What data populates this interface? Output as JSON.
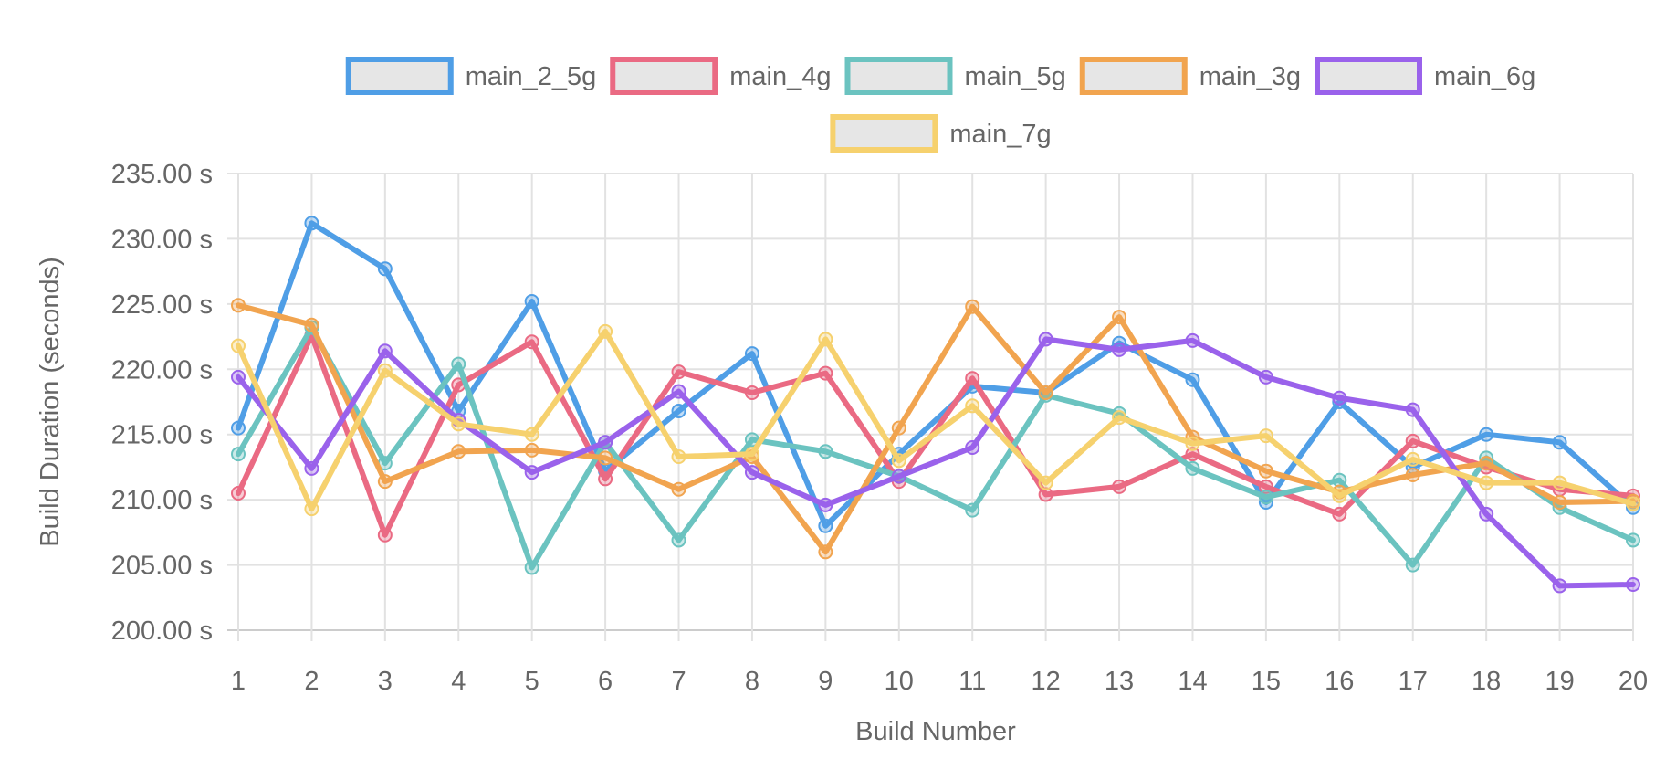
{
  "chart_data": {
    "type": "line",
    "title": "",
    "xlabel": "Build Number",
    "ylabel": "Build Duration (seconds)",
    "x": [
      1,
      2,
      3,
      4,
      5,
      6,
      7,
      8,
      9,
      10,
      11,
      12,
      13,
      14,
      15,
      16,
      17,
      18,
      19,
      20
    ],
    "ylim": [
      200,
      235
    ],
    "yticks": [
      200,
      205,
      210,
      215,
      220,
      225,
      230,
      235
    ],
    "y_tick_labels": [
      "200.00 s",
      "205.00 s",
      "210.00 s",
      "215.00 s",
      "220.00 s",
      "225.00 s",
      "230.00 s",
      "235.00 s"
    ],
    "grid": true,
    "legend_position": "top-center",
    "series": [
      {
        "name": "main_2_5g",
        "color": "#4f9ee6",
        "values": [
          215.5,
          231.2,
          227.7,
          216.8,
          225.2,
          212.2,
          216.8,
          221.2,
          208.0,
          213.5,
          218.7,
          218.2,
          222.0,
          219.2,
          209.8,
          217.5,
          212.5,
          215.0,
          214.4,
          209.4
        ]
      },
      {
        "name": "main_4g",
        "color": "#ea6a83",
        "values": [
          210.5,
          222.6,
          207.3,
          218.8,
          222.1,
          211.6,
          219.8,
          218.2,
          219.7,
          211.4,
          219.3,
          210.4,
          211.0,
          213.5,
          211.0,
          208.9,
          214.5,
          212.5,
          210.8,
          210.3
        ]
      },
      {
        "name": "main_5g",
        "color": "#6bc3c0",
        "values": [
          213.5,
          223.2,
          212.8,
          220.4,
          204.8,
          214.4,
          206.9,
          214.6,
          213.7,
          211.8,
          209.2,
          218.0,
          216.6,
          212.4,
          210.2,
          211.5,
          205.0,
          213.2,
          209.4,
          206.9
        ]
      },
      {
        "name": "main_3g",
        "color": "#f1a44f",
        "values": [
          224.9,
          223.4,
          211.4,
          213.7,
          213.8,
          213.2,
          210.8,
          213.3,
          206.0,
          215.5,
          224.8,
          218.2,
          224.0,
          214.8,
          212.2,
          210.6,
          211.9,
          212.8,
          209.8,
          209.9
        ]
      },
      {
        "name": "main_6g",
        "color": "#9a62eb",
        "values": [
          219.4,
          212.4,
          221.4,
          216.1,
          212.1,
          214.4,
          218.3,
          212.1,
          209.6,
          211.8,
          214.0,
          222.3,
          221.5,
          222.2,
          219.4,
          217.8,
          216.9,
          208.9,
          203.4,
          203.5
        ]
      },
      {
        "name": "main_7g",
        "color": "#f6d16e",
        "values": [
          221.8,
          209.3,
          219.9,
          215.8,
          215.0,
          222.9,
          213.3,
          213.5,
          222.3,
          213.0,
          217.2,
          211.3,
          216.3,
          214.3,
          214.9,
          210.3,
          213.1,
          211.3,
          211.3,
          209.7
        ]
      }
    ]
  }
}
